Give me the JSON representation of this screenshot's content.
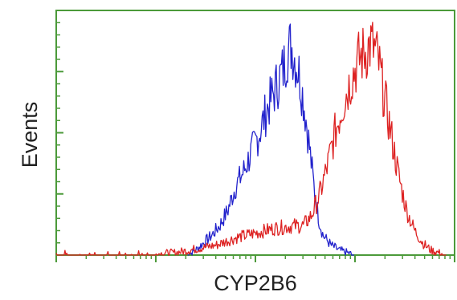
{
  "chart_data": {
    "type": "line",
    "title": "",
    "xlabel": "CYP2B6",
    "ylabel": "Events",
    "xlim": [
      0,
      100
    ],
    "ylim": [
      0,
      100
    ],
    "log_x": true,
    "grid": false,
    "legend": "none",
    "axis_color": "#4c9a3a",
    "series": [
      {
        "color": "#2222cc",
        "x": [
          33,
          35,
          37,
          39,
          41,
          43,
          45,
          47,
          49,
          51,
          53,
          55,
          57,
          58,
          59,
          60,
          61,
          62,
          63,
          64,
          65,
          66,
          67,
          69,
          71,
          73,
          75
        ],
        "y": [
          0,
          2,
          5,
          8,
          12,
          18,
          28,
          34,
          42,
          50,
          60,
          68,
          76,
          83,
          86,
          80,
          74,
          64,
          52,
          38,
          24,
          14,
          8,
          4,
          2,
          1,
          0
        ]
      },
      {
        "color": "#dd2222",
        "x": [
          0,
          10,
          20,
          30,
          40,
          45,
          50,
          55,
          60,
          62,
          64,
          66,
          68,
          70,
          72,
          74,
          76,
          78,
          79,
          80,
          81,
          82,
          84,
          86,
          88,
          90,
          92,
          94,
          96,
          98
        ],
        "y": [
          0,
          0,
          0,
          1,
          4,
          7,
          9,
          11,
          12,
          12,
          16,
          24,
          36,
          50,
          62,
          72,
          80,
          84,
          86,
          84,
          78,
          68,
          50,
          32,
          18,
          10,
          5,
          2,
          1,
          0
        ]
      }
    ]
  }
}
